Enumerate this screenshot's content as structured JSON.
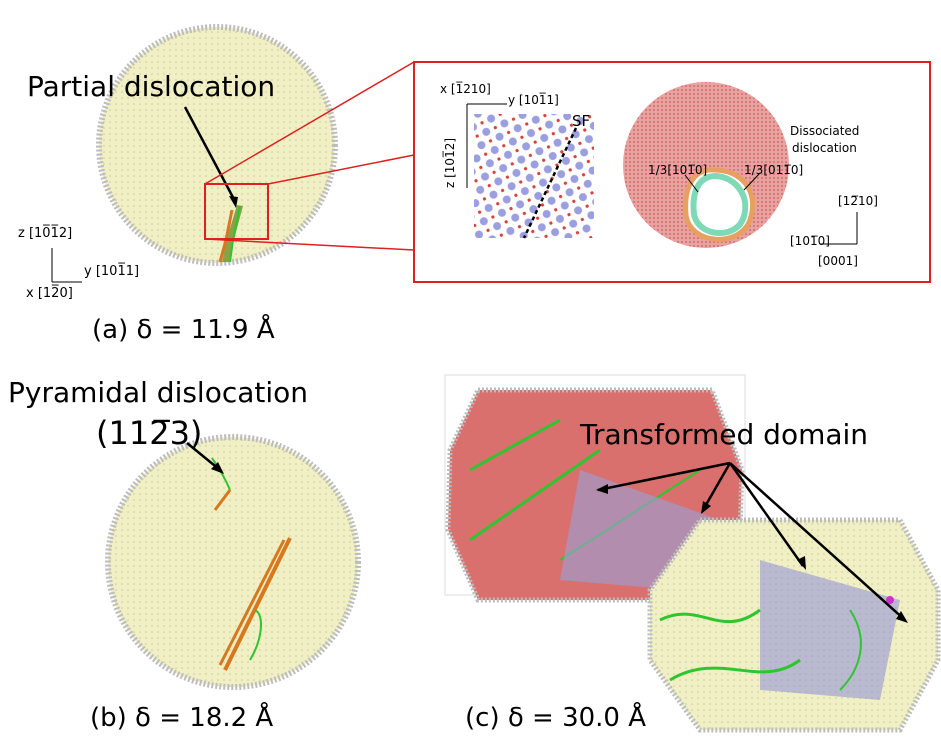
{
  "panel_a": {
    "label": "Partial dislocation",
    "caption": "(a) δ = 11.9 Å",
    "axes": {
      "z": "z [10̅1̅2]",
      "y": "y [101̅1]",
      "x": "x [12̅0]"
    },
    "inset_left": {
      "axis_x": "x [1̅210]",
      "axis_y": "y [101̅1]",
      "axis_z": "z [101̅2]",
      "sf_label": "SF"
    },
    "inset_right": {
      "title_line1": "Dissociated",
      "title_line2": "dislocation",
      "burgers_1": "1/3[101̅0]",
      "burgers_2": "1/3[011̅0]",
      "dir_up": "[12̅10]",
      "dir_left": "[101̅0]",
      "dir_down": "[0001]"
    }
  },
  "panel_b": {
    "label_line1": "Pyramidal dislocation",
    "label_line2": "(112̅3)",
    "caption": "(b) δ = 18.2 Å"
  },
  "panel_c": {
    "label": "Transformed domain",
    "caption": "(c) δ = 30.0 Å"
  },
  "colors": {
    "sphere_fill": "#f1efc4",
    "sphere_edge": "#c9c9c9",
    "inset_border": "#e02020",
    "red_atoms": "#d9706d",
    "dislocation_green": "#2ec62e",
    "dislocation_orange": "#d7781e",
    "atom_blue": "#8a8ed8"
  }
}
